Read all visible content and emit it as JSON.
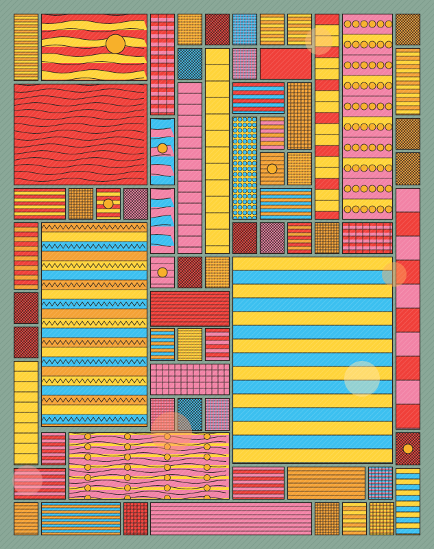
{
  "palette": {
    "background": "#8aa898",
    "red": "#f0403a",
    "orange": "#f4a236",
    "yellow": "#ffd43a",
    "pink": "#f283a6",
    "blue": "#3cc0f0",
    "ink": "#2a2320",
    "dot": "#f7b02a"
  },
  "tile_kinds": [
    "stripes",
    "wavy-stripes",
    "zigzag-band",
    "grid-cells",
    "crosshatch",
    "mesh",
    "circles-row",
    "sun-dot"
  ],
  "overlay_glows": 5
}
